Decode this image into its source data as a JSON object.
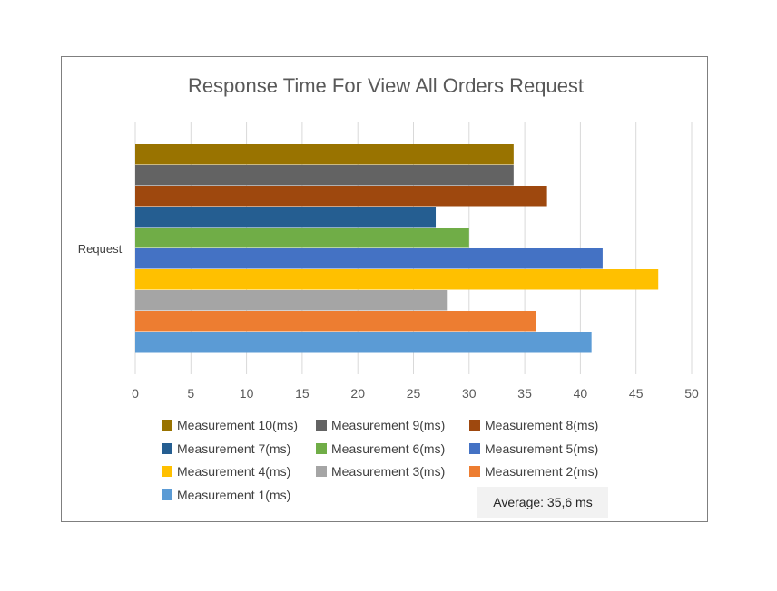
{
  "chart_data": {
    "type": "bar",
    "orientation": "horizontal",
    "title": "Response Time For View All Orders Request",
    "categories": [
      "Request"
    ],
    "xlim": [
      0,
      50
    ],
    "x_ticks": [
      0,
      5,
      10,
      15,
      20,
      25,
      30,
      35,
      40,
      45,
      50
    ],
    "grid": "vertical",
    "legend_position": "bottom",
    "series": [
      {
        "name": "Measurement 1(ms)",
        "values": [
          41
        ],
        "color": "#5B9BD5"
      },
      {
        "name": "Measurement 2(ms)",
        "values": [
          36
        ],
        "color": "#ED7D31"
      },
      {
        "name": "Measurement 3(ms)",
        "values": [
          28
        ],
        "color": "#A5A5A5"
      },
      {
        "name": "Measurement 4(ms)",
        "values": [
          47
        ],
        "color": "#FFC000"
      },
      {
        "name": "Measurement 5(ms)",
        "values": [
          42
        ],
        "color": "#4472C4"
      },
      {
        "name": "Measurement 6(ms)",
        "values": [
          30
        ],
        "color": "#70AD47"
      },
      {
        "name": "Measurement 7(ms)",
        "values": [
          27
        ],
        "color": "#255E91"
      },
      {
        "name": "Measurement 8(ms)",
        "values": [
          37
        ],
        "color": "#9E480E"
      },
      {
        "name": "Measurement 9(ms)",
        "values": [
          34
        ],
        "color": "#636363"
      },
      {
        "name": "Measurement 10(ms)",
        "values": [
          34
        ],
        "color": "#997300"
      }
    ],
    "annotation": "Average: 35,6 ms"
  }
}
